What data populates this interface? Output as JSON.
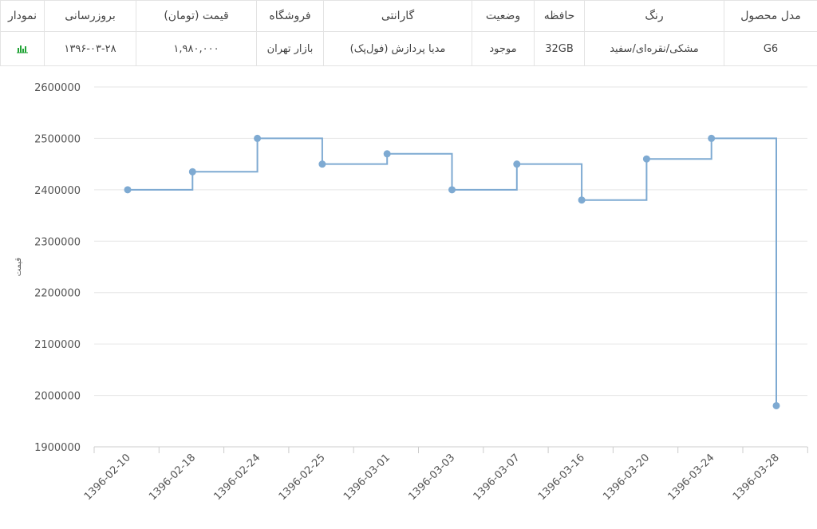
{
  "table": {
    "headers": [
      "مدل محصول",
      "رنگ",
      "حافظه",
      "وضعیت",
      "گارانتی",
      "فروشگاه",
      "قیمت (تومان)",
      "بروزرسانی",
      "نمودار"
    ],
    "row": {
      "model": "G6",
      "color": "مشکی/نقره‌ای/سفید",
      "memory": "32GB",
      "status": "موجود",
      "warranty": "مدیا پردازش (فول‌پک)",
      "store": "بازار تهران",
      "price": "۱,۹۸۰,۰۰۰",
      "updated": "۱۳۹۶-۰۳-۲۸",
      "chart_icon": "bar-chart-icon"
    },
    "colors": {
      "status": "#21a336",
      "chart_icon": "#21a336"
    }
  },
  "chart_data": {
    "type": "line",
    "step": true,
    "x": [
      "1396-02-10",
      "1396-02-18",
      "1396-02-24",
      "1396-02-25",
      "1396-03-01",
      "1396-03-03",
      "1396-03-07",
      "1396-03-16",
      "1396-03-20",
      "1396-03-24",
      "1396-03-28"
    ],
    "series": [
      {
        "values": [
          2400000,
          2435000,
          2500000,
          2450000,
          2470000,
          2400000,
          2450000,
          2380000,
          2460000,
          2500000,
          1980000
        ]
      }
    ],
    "yticks": [
      1900000,
      2000000,
      2100000,
      2200000,
      2300000,
      2400000,
      2500000,
      2600000
    ],
    "ylim": [
      1900000,
      2600000
    ],
    "ylabel": "قیمت",
    "xlabel": "",
    "grid": true,
    "line_color": "#7eaad2",
    "grid_color": "#e6e6e6"
  }
}
